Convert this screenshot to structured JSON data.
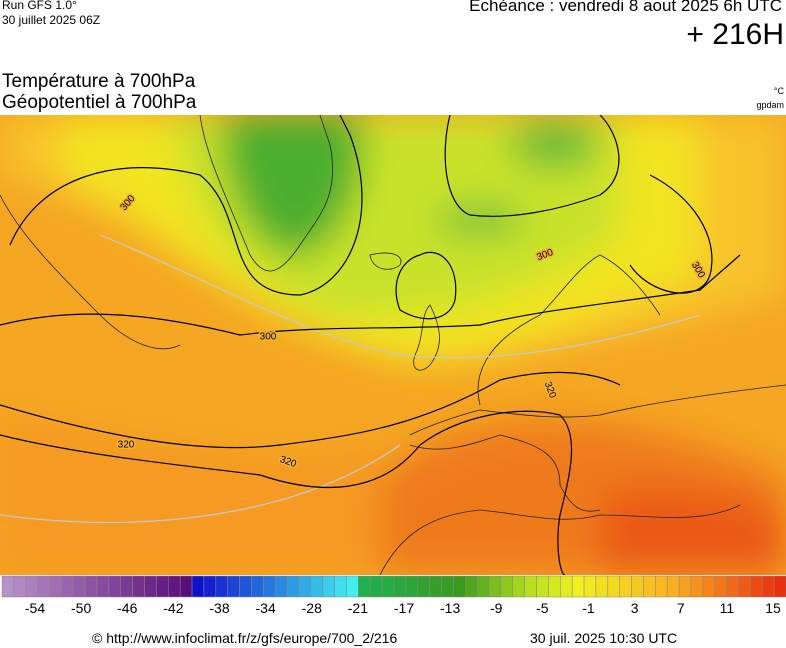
{
  "header": {
    "run": "Run GFS 1.0°",
    "run_date": "30 juillet 2025 06Z",
    "valid": "Echéance : vendredi 8 aout 2025 6h UTC",
    "lead": "+ 216H"
  },
  "titles": [
    "Température à 700hPa",
    "Géopotentiel à 700hPa"
  ],
  "units": [
    "°C",
    "gpdam"
  ],
  "contour_labels": [
    "300",
    "300",
    "300",
    "300",
    "320",
    "320",
    "320"
  ],
  "colorbar": {
    "ticks": [
      -54,
      -50,
      -46,
      -42,
      -38,
      -34,
      -28,
      -21,
      -17,
      -13,
      -9,
      -5,
      -1,
      3,
      7,
      11,
      15
    ]
  },
  "footer": {
    "url": "© http://www.infoclimat.fr/z/gfs/europe/700_2/216",
    "time": "30 juil. 2025 10:30 UTC"
  }
}
